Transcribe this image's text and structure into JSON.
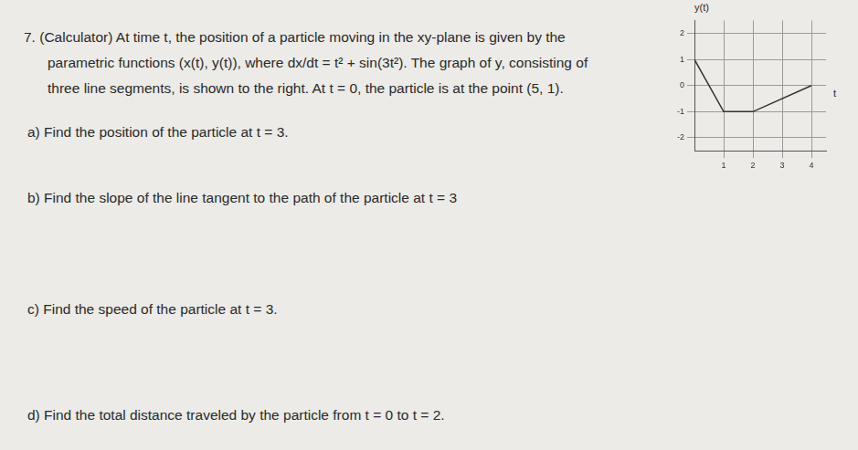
{
  "question": {
    "lines": [
      "7.  (Calculator) At time t, the position of a particle moving in the xy-plane is given by the",
      "parametric functions (x(t), y(t)), where dx/dt = t² + sin(3t²). The graph of y, consisting of",
      "three line segments, is shown to the right. At t = 0, the particle is at the point (5, 1)."
    ]
  },
  "parts": [
    "a)  Find the position of the particle at t = 3.",
    "b)  Find the slope of the line tangent to the path of the particle at t = 3",
    "c)  Find the speed of the particle at t = 3.",
    "d)  Find the total distance traveled by the particle from t = 0 to t = 2."
  ],
  "chart_data": {
    "type": "line",
    "y_label": "y(t)",
    "x_label": "t",
    "x": [
      0,
      1,
      2,
      4
    ],
    "values": [
      1,
      -1,
      -1,
      0
    ],
    "color": "#333333",
    "xlim": [
      0,
      4.5
    ],
    "xticks": [
      1,
      2,
      3,
      4
    ],
    "ylim": [
      -2.5,
      2.5
    ],
    "yticks": [
      -2,
      -1,
      0,
      1,
      2
    ],
    "grid": true
  }
}
